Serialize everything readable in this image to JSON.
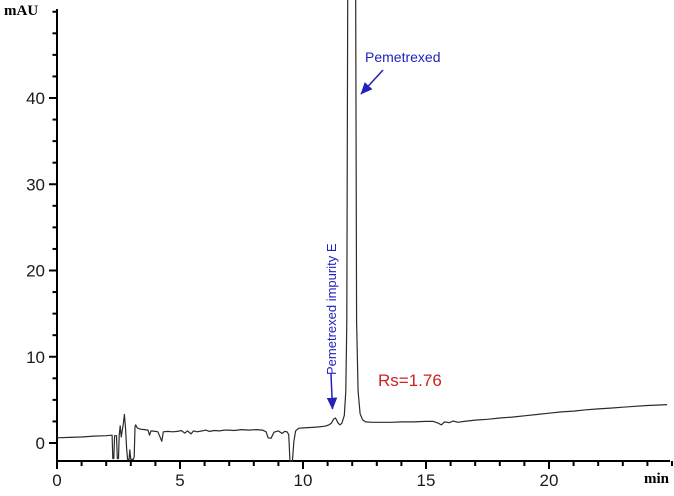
{
  "chart_data": {
    "type": "line",
    "title": "",
    "xlabel": "min",
    "ylabel": "mAU",
    "xlim": [
      0,
      25
    ],
    "ylim": [
      -2.5,
      50.4
    ],
    "grid": false,
    "legend": null,
    "axis_color": "#000000",
    "x_major_ticks": [
      0,
      5,
      10,
      15,
      20
    ],
    "x_minor_ticks": [
      1,
      2,
      3,
      4,
      6,
      7,
      8,
      9,
      11,
      12,
      13,
      14,
      16,
      17,
      18,
      19,
      21,
      22,
      23,
      24,
      25
    ],
    "y_major_ticks": [
      0,
      10,
      20,
      30,
      40
    ],
    "y_minor_ticks": [
      2.5,
      5,
      7.5,
      12.5,
      15,
      17.5,
      22.5,
      25,
      27.5,
      32.5,
      35,
      37.5,
      42.5,
      45,
      47.5,
      50
    ],
    "series": [
      {
        "name": "UV signal",
        "color": "#2b2b2b",
        "points": [
          [
            0,
            0.6
          ],
          [
            0.5,
            0.65
          ],
          [
            1,
            0.7
          ],
          [
            1.5,
            0.8
          ],
          [
            2,
            0.85
          ],
          [
            2.24,
            0.9
          ],
          [
            2.27,
            -1.8
          ],
          [
            2.31,
            -1.8
          ],
          [
            2.34,
            0.85
          ],
          [
            2.42,
            0.85
          ],
          [
            2.45,
            -1.8
          ],
          [
            2.5,
            -1.8
          ],
          [
            2.53,
            0.9
          ],
          [
            2.57,
            2.0
          ],
          [
            2.61,
            0.7
          ],
          [
            2.65,
            1.4
          ],
          [
            2.7,
            2.3
          ],
          [
            2.74,
            3.3
          ],
          [
            2.79,
            1.6
          ],
          [
            2.83,
            -0.6
          ],
          [
            2.87,
            -1.9
          ],
          [
            2.93,
            -1.9
          ],
          [
            2.96,
            -0.8
          ],
          [
            3.0,
            -1.9
          ],
          [
            3.1,
            -1.9
          ],
          [
            3.14,
            -1.6
          ],
          [
            3.17,
            1.9
          ],
          [
            3.2,
            2.1
          ],
          [
            3.26,
            1.75
          ],
          [
            3.4,
            1.6
          ],
          [
            3.55,
            1.55
          ],
          [
            3.7,
            1.5
          ],
          [
            3.76,
            0.9
          ],
          [
            3.82,
            1.4
          ],
          [
            4.0,
            1.35
          ],
          [
            4.1,
            1.3
          ],
          [
            4.26,
            0.2
          ],
          [
            4.32,
            1.3
          ],
          [
            4.5,
            1.35
          ],
          [
            4.7,
            1.3
          ],
          [
            4.9,
            1.35
          ],
          [
            5.05,
            1.45
          ],
          [
            5.2,
            1.15
          ],
          [
            5.3,
            1.4
          ],
          [
            5.45,
            1.05
          ],
          [
            5.55,
            1.4
          ],
          [
            5.7,
            1.3
          ],
          [
            5.9,
            1.4
          ],
          [
            6.05,
            1.5
          ],
          [
            6.2,
            1.35
          ],
          [
            6.4,
            1.45
          ],
          [
            6.6,
            1.4
          ],
          [
            6.8,
            1.5
          ],
          [
            7.0,
            1.5
          ],
          [
            7.2,
            1.45
          ],
          [
            7.5,
            1.55
          ],
          [
            7.8,
            1.5
          ],
          [
            8.1,
            1.55
          ],
          [
            8.35,
            1.5
          ],
          [
            8.5,
            1.3
          ],
          [
            8.58,
            0.6
          ],
          [
            8.7,
            0.55
          ],
          [
            8.82,
            1.25
          ],
          [
            9.0,
            1.4
          ],
          [
            9.15,
            1.1
          ],
          [
            9.25,
            1.35
          ],
          [
            9.35,
            1.3
          ],
          [
            9.42,
            1.0
          ],
          [
            9.47,
            -2.1
          ],
          [
            9.57,
            -2.1
          ],
          [
            9.63,
            0.2
          ],
          [
            9.7,
            1.4
          ],
          [
            9.82,
            1.7
          ],
          [
            10.0,
            1.75
          ],
          [
            10.3,
            1.8
          ],
          [
            10.6,
            1.85
          ],
          [
            10.9,
            1.95
          ],
          [
            11.05,
            2.1
          ],
          [
            11.15,
            2.3
          ],
          [
            11.25,
            2.8
          ],
          [
            11.32,
            2.9
          ],
          [
            11.42,
            2.35
          ],
          [
            11.5,
            2.1
          ],
          [
            11.58,
            2.3
          ],
          [
            11.68,
            3.2
          ],
          [
            11.74,
            6
          ],
          [
            11.78,
            14
          ],
          [
            11.82,
            55
          ],
          [
            12.14,
            55
          ],
          [
            12.18,
            14
          ],
          [
            12.24,
            6
          ],
          [
            12.32,
            3.4
          ],
          [
            12.42,
            2.7
          ],
          [
            12.55,
            2.45
          ],
          [
            12.8,
            2.4
          ],
          [
            13.2,
            2.4
          ],
          [
            13.6,
            2.4
          ],
          [
            14.0,
            2.45
          ],
          [
            14.5,
            2.45
          ],
          [
            15.0,
            2.5
          ],
          [
            15.3,
            2.5
          ],
          [
            15.5,
            2.3
          ],
          [
            15.62,
            2.1
          ],
          [
            15.75,
            2.45
          ],
          [
            15.95,
            2.35
          ],
          [
            16.1,
            2.55
          ],
          [
            16.3,
            2.4
          ],
          [
            16.55,
            2.5
          ],
          [
            17.0,
            2.65
          ],
          [
            17.5,
            2.75
          ],
          [
            18.0,
            2.9
          ],
          [
            18.5,
            3.0
          ],
          [
            19.0,
            3.15
          ],
          [
            19.5,
            3.3
          ],
          [
            20.0,
            3.45
          ],
          [
            20.5,
            3.6
          ],
          [
            21.0,
            3.7
          ],
          [
            21.5,
            3.85
          ],
          [
            22.0,
            3.95
          ],
          [
            22.5,
            4.05
          ],
          [
            23.0,
            4.15
          ],
          [
            23.5,
            4.25
          ],
          [
            24.0,
            4.35
          ],
          [
            24.4,
            4.4
          ],
          [
            24.8,
            4.45
          ]
        ]
      }
    ],
    "annotations": [
      {
        "id": "pemetrexed",
        "text": "Pemetrexed",
        "color": "#2222bb",
        "points_to": {
          "t": 12.3,
          "mAU": 40
        }
      },
      {
        "id": "impurity-e",
        "text": "Pemetrexed impurity E",
        "color": "#2222bb",
        "points_to": {
          "t": 11.3,
          "mAU": 3.5
        }
      },
      {
        "id": "resolution",
        "text": "Rs=1.76",
        "color": "#cc2222"
      }
    ]
  }
}
